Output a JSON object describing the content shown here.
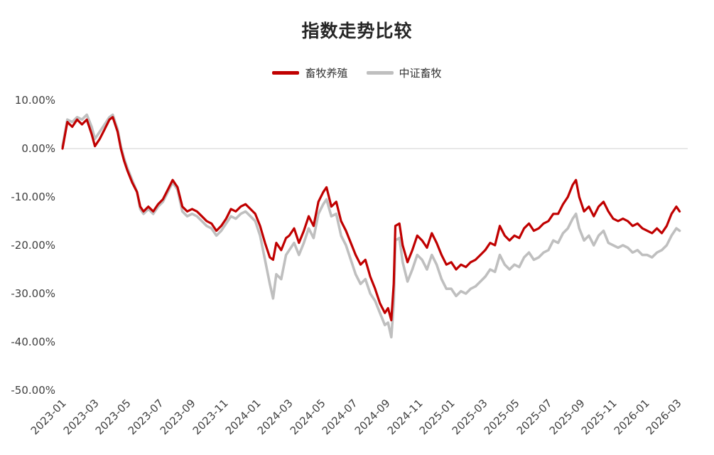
{
  "title": "指数走势比较",
  "legend": [
    {
      "label": "畜牧养殖",
      "color": "#C00000"
    },
    {
      "label": "中证畜牧",
      "color": "#BFBFBF"
    }
  ],
  "chart_data": {
    "type": "line",
    "title": "指数走势比较",
    "x_unit": "months since 2023-01",
    "xlim": [
      0,
      38.6
    ],
    "ylim": [
      -50,
      10
    ],
    "grid": "zero-line-only",
    "legend_position": "top-center",
    "y_ticks": [
      {
        "value": 10,
        "label": "10.00%"
      },
      {
        "value": 0,
        "label": "0.00%"
      },
      {
        "value": -10,
        "label": "-10.00%"
      },
      {
        "value": -20,
        "label": "-20.00%"
      },
      {
        "value": -30,
        "label": "-30.00%"
      },
      {
        "value": -40,
        "label": "-40.00%"
      },
      {
        "value": -50,
        "label": "-50.00%"
      }
    ],
    "x_ticks": [
      {
        "value": 0,
        "label": "2023-01"
      },
      {
        "value": 2,
        "label": "2023-03"
      },
      {
        "value": 4,
        "label": "2023-05"
      },
      {
        "value": 6,
        "label": "2023-07"
      },
      {
        "value": 8,
        "label": "2023-09"
      },
      {
        "value": 10,
        "label": "2023-11"
      },
      {
        "value": 12,
        "label": "2024-01"
      },
      {
        "value": 14,
        "label": "2024-03"
      },
      {
        "value": 16,
        "label": "2024-05"
      },
      {
        "value": 18,
        "label": "2024-07"
      },
      {
        "value": 20,
        "label": "2024-09"
      },
      {
        "value": 22,
        "label": "2024-11"
      },
      {
        "value": 24,
        "label": "2025-01"
      },
      {
        "value": 26,
        "label": "2025-03"
      },
      {
        "value": 28,
        "label": "2025-05"
      },
      {
        "value": 30,
        "label": "2025-07"
      },
      {
        "value": 32,
        "label": "2025-09"
      },
      {
        "value": 34,
        "label": "2025-11"
      },
      {
        "value": 36,
        "label": "2026-01"
      },
      {
        "value": 38,
        "label": "2026-03"
      }
    ],
    "x": [
      0,
      0.3,
      0.6,
      0.9,
      1.2,
      1.5,
      1.8,
      2,
      2.3,
      2.6,
      2.9,
      3.1,
      3.4,
      3.6,
      3.8,
      4,
      4.3,
      4.6,
      4.8,
      5,
      5.3,
      5.6,
      5.9,
      6.2,
      6.5,
      6.8,
      7.1,
      7.4,
      7.7,
      8,
      8.3,
      8.6,
      8.9,
      9.2,
      9.5,
      9.8,
      10.1,
      10.4,
      10.7,
      11,
      11.3,
      11.6,
      11.9,
      12.2,
      12.5,
      12.8,
      13,
      13.2,
      13.5,
      13.8,
      14,
      14.3,
      14.6,
      14.9,
      15.2,
      15.5,
      15.8,
      16.1,
      16.3,
      16.6,
      16.9,
      17.2,
      17.5,
      17.8,
      18.1,
      18.4,
      18.7,
      19,
      19.3,
      19.6,
      19.9,
      20.1,
      20.3,
      20.45,
      20.55,
      20.8,
      21,
      21.3,
      21.6,
      21.9,
      22.2,
      22.5,
      22.8,
      23.1,
      23.4,
      23.7,
      24,
      24.3,
      24.6,
      24.9,
      25.2,
      25.5,
      25.8,
      26.1,
      26.4,
      26.7,
      27,
      27.3,
      27.6,
      27.9,
      28.2,
      28.5,
      28.8,
      29.1,
      29.4,
      29.7,
      30,
      30.3,
      30.6,
      30.9,
      31.2,
      31.5,
      31.7,
      31.9,
      32.2,
      32.5,
      32.8,
      33.1,
      33.4,
      33.7,
      34,
      34.3,
      34.6,
      34.9,
      35.2,
      35.5,
      35.8,
      36.1,
      36.4,
      36.7,
      37,
      37.3,
      37.6,
      37.9,
      38.1
    ],
    "series": [
      {
        "name": "畜牧养殖",
        "color": "#C00000",
        "width": 3.2,
        "values": [
          0,
          5.5,
          4.5,
          6,
          5,
          6,
          3,
          0.5,
          2,
          4,
          6,
          6.5,
          3.5,
          0,
          -2.5,
          -4.5,
          -7,
          -9,
          -12,
          -13,
          -12,
          -13,
          -11.5,
          -10.5,
          -8.5,
          -6.5,
          -8,
          -12,
          -13,
          -12.5,
          -13,
          -14,
          -15,
          -15.5,
          -17,
          -16,
          -14.5,
          -12.5,
          -13,
          -12,
          -11.5,
          -12.5,
          -13.5,
          -16,
          -19.5,
          -22.5,
          -23,
          -19.5,
          -21,
          -18.5,
          -18,
          -16.5,
          -19.5,
          -17,
          -14,
          -16,
          -11,
          -9,
          -8,
          -12,
          -11,
          -15,
          -17,
          -19.5,
          -22,
          -24,
          -23,
          -26.5,
          -29,
          -32,
          -34,
          -33,
          -35.5,
          -28,
          -16,
          -15.5,
          -20,
          -23.5,
          -21,
          -18,
          -19,
          -20.5,
          -17.5,
          -19.5,
          -22,
          -24,
          -23.5,
          -25,
          -24,
          -24.5,
          -23.5,
          -23,
          -22,
          -21,
          -19.5,
          -20,
          -16,
          -18,
          -19,
          -18,
          -18.5,
          -16.5,
          -15.5,
          -17,
          -16.5,
          -15.5,
          -15,
          -13.5,
          -13.5,
          -11.5,
          -10,
          -7.5,
          -6.5,
          -10,
          -13,
          -12,
          -14,
          -12,
          -11,
          -13,
          -14.5,
          -15,
          -14.5,
          -15,
          -16,
          -15.5,
          -16.5,
          -17,
          -17.5,
          -16.5,
          -17.5,
          -16,
          -13.5,
          -12,
          -13
        ]
      },
      {
        "name": "中证畜牧",
        "color": "#BFBFBF",
        "width": 3.6,
        "values": [
          0.5,
          6,
          5.5,
          6.5,
          6,
          7,
          4.5,
          2,
          3.5,
          5,
          6.5,
          7,
          4,
          0.5,
          -2,
          -4,
          -6.5,
          -9,
          -12.5,
          -13.5,
          -12.5,
          -13.5,
          -12,
          -11,
          -9,
          -7,
          -8.5,
          -13,
          -14,
          -13.5,
          -14,
          -15,
          -16,
          -16.5,
          -18,
          -17,
          -15.5,
          -14,
          -14.5,
          -13.5,
          -13,
          -14,
          -15,
          -18,
          -23,
          -28,
          -31,
          -26,
          -27,
          -22,
          -21,
          -19.5,
          -22,
          -19.5,
          -16.5,
          -18.5,
          -13.5,
          -11.5,
          -10.5,
          -14,
          -13.5,
          -18,
          -20,
          -23,
          -26,
          -28,
          -27,
          -30,
          -31.5,
          -34,
          -36.5,
          -36,
          -39,
          -32,
          -19,
          -18.5,
          -23.5,
          -27.5,
          -25,
          -22,
          -23,
          -25,
          -22,
          -24,
          -27,
          -29,
          -29,
          -30.5,
          -29.5,
          -30,
          -29,
          -28.5,
          -27.5,
          -26.5,
          -25,
          -25.5,
          -22,
          -24,
          -25,
          -24,
          -24.5,
          -22.5,
          -21.5,
          -23,
          -22.5,
          -21.5,
          -21,
          -19,
          -19.5,
          -17.5,
          -16.5,
          -14.5,
          -13.5,
          -16.5,
          -19,
          -18,
          -20,
          -18,
          -17,
          -19.5,
          -20,
          -20.5,
          -20,
          -20.5,
          -21.5,
          -21,
          -22,
          -22,
          -22.5,
          -21.5,
          -21,
          -20,
          -18,
          -16.5,
          -17
        ]
      }
    ]
  }
}
